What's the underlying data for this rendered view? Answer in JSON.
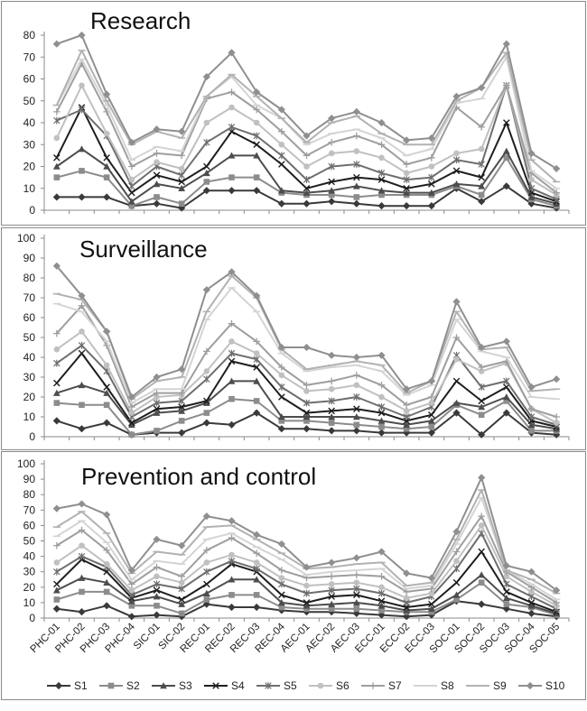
{
  "chart_data": [
    {
      "type": "line",
      "title": "Research",
      "ylim": [
        0,
        80
      ],
      "yticks": [
        0,
        10,
        20,
        30,
        40,
        50,
        60,
        70,
        80
      ],
      "categories": [
        "PHC-01",
        "PHC-02",
        "PHC-03",
        "PHC-04",
        "SIC-01",
        "SIC-02",
        "REC-01",
        "REC-02",
        "REC-03",
        "REC-04",
        "AEC-01",
        "AEC-02",
        "AEC-03",
        "ECC-01",
        "ECC-02",
        "ECC-03",
        "SOC-01",
        "SOC-02",
        "SOC-03",
        "SOC-04",
        "SOC-05"
      ],
      "grid": false,
      "series": [
        {
          "name": "S1",
          "values": [
            6,
            6,
            6,
            2,
            3,
            1,
            9,
            9,
            9,
            3,
            3,
            4,
            3,
            2,
            2,
            2,
            10,
            4,
            11,
            3,
            1
          ]
        },
        {
          "name": "S2",
          "values": [
            15,
            18,
            15,
            2,
            6,
            3,
            13,
            15,
            15,
            8,
            7,
            7,
            6,
            7,
            7,
            7,
            11,
            7,
            24,
            5,
            2
          ]
        },
        {
          "name": "S3",
          "values": [
            20,
            28,
            20,
            4,
            12,
            10,
            17,
            25,
            25,
            9,
            8,
            9,
            11,
            9,
            8,
            8,
            12,
            11,
            27,
            6,
            3
          ]
        },
        {
          "name": "S4",
          "values": [
            24,
            47,
            24,
            8,
            16,
            13,
            20,
            36,
            30,
            21,
            10,
            13,
            15,
            14,
            10,
            12,
            18,
            15,
            40,
            8,
            4
          ]
        },
        {
          "name": "S5",
          "values": [
            41,
            46,
            34,
            11,
            20,
            16,
            31,
            38,
            34,
            25,
            14,
            20,
            21,
            17,
            14,
            15,
            23,
            21,
            57,
            10,
            5
          ]
        },
        {
          "name": "S6",
          "values": [
            33,
            57,
            35,
            14,
            22,
            19,
            40,
            47,
            40,
            30,
            20,
            26,
            27,
            24,
            17,
            20,
            26,
            28,
            57,
            14,
            7
          ]
        },
        {
          "name": "S7",
          "values": [
            45,
            67,
            45,
            20,
            26,
            25,
            51,
            54,
            46,
            36,
            25,
            31,
            34,
            30,
            21,
            24,
            47,
            38,
            57,
            17,
            8
          ]
        },
        {
          "name": "S8",
          "values": [
            48,
            69,
            48,
            23,
            29,
            27,
            52,
            61,
            48,
            42,
            30,
            35,
            37,
            33,
            25,
            28,
            49,
            51,
            70,
            18,
            10
          ]
        },
        {
          "name": "S9",
          "values": [
            48,
            73,
            50,
            30,
            36,
            33,
            52,
            62,
            52,
            42,
            31,
            40,
            43,
            35,
            30,
            30,
            50,
            56,
            72,
            23,
            13
          ]
        },
        {
          "name": "S10",
          "values": [
            76,
            80,
            53,
            31,
            37,
            36,
            61,
            72,
            54,
            46,
            34,
            42,
            45,
            40,
            32,
            33,
            52,
            56,
            76,
            26,
            19
          ]
        }
      ]
    },
    {
      "type": "line",
      "title": "Surveillance",
      "ylim": [
        0,
        100
      ],
      "yticks": [
        0,
        10,
        20,
        30,
        40,
        50,
        60,
        70,
        80,
        90,
        100
      ],
      "categories": [
        "PHC-01",
        "PHC-02",
        "PHC-03",
        "PHC-04",
        "SIC-01",
        "SIC-02",
        "REC-01",
        "REC-02",
        "REC-03",
        "REC-04",
        "AEC-01",
        "AEC-02",
        "AEC-03",
        "ECC-01",
        "ECC-02",
        "ECC-03",
        "SOC-01",
        "SOC-02",
        "SOC-03",
        "SOC-04",
        "SOC-05"
      ],
      "grid": false,
      "series": [
        {
          "name": "S1",
          "values": [
            8,
            4,
            7,
            1,
            2,
            2,
            7,
            6,
            12,
            4,
            4,
            3,
            3,
            2,
            2,
            2,
            12,
            1,
            12,
            2,
            1
          ]
        },
        {
          "name": "S2",
          "values": [
            17,
            16,
            16,
            1,
            3,
            8,
            12,
            19,
            18,
            8,
            8,
            7,
            6,
            5,
            4,
            5,
            16,
            11,
            18,
            3,
            3
          ]
        },
        {
          "name": "S3",
          "values": [
            22,
            26,
            22,
            6,
            12,
            13,
            17,
            28,
            28,
            10,
            10,
            10,
            10,
            8,
            6,
            8,
            17,
            15,
            20,
            6,
            4
          ]
        },
        {
          "name": "S4",
          "values": [
            27,
            42,
            25,
            7,
            14,
            15,
            18,
            38,
            35,
            20,
            12,
            13,
            14,
            12,
            8,
            11,
            28,
            18,
            25,
            8,
            5
          ]
        },
        {
          "name": "S5",
          "values": [
            37,
            46,
            33,
            10,
            17,
            18,
            29,
            42,
            39,
            25,
            17,
            18,
            20,
            15,
            10,
            15,
            41,
            25,
            28,
            10,
            6
          ]
        },
        {
          "name": "S6",
          "values": [
            44,
            53,
            36,
            12,
            20,
            21,
            33,
            48,
            42,
            31,
            23,
            24,
            26,
            20,
            13,
            17,
            39,
            33,
            37,
            14,
            7
          ]
        },
        {
          "name": "S7",
          "values": [
            52,
            66,
            46,
            15,
            22,
            22,
            43,
            57,
            48,
            35,
            26,
            28,
            31,
            26,
            16,
            20,
            50,
            35,
            38,
            14,
            10
          ]
        },
        {
          "name": "S8",
          "values": [
            67,
            63,
            48,
            17,
            24,
            24,
            59,
            75,
            63,
            42,
            33,
            35,
            36,
            33,
            21,
            26,
            59,
            43,
            40,
            20,
            19
          ]
        },
        {
          "name": "S9",
          "values": [
            72,
            69,
            53,
            19,
            28,
            30,
            63,
            81,
            70,
            44,
            34,
            36,
            38,
            36,
            22,
            28,
            63,
            44,
            45,
            23,
            24
          ]
        },
        {
          "name": "S10",
          "values": [
            86,
            71,
            53,
            20,
            30,
            34,
            74,
            83,
            71,
            45,
            45,
            41,
            40,
            41,
            24,
            28,
            68,
            45,
            48,
            25,
            29
          ]
        }
      ]
    },
    {
      "type": "line",
      "title": "Prevention and control",
      "ylim": [
        0,
        100
      ],
      "yticks": [
        0,
        10,
        20,
        30,
        40,
        50,
        60,
        70,
        80,
        90,
        100
      ],
      "categories": [
        "PHC-01",
        "PHC-02",
        "PHC-03",
        "PHC-04",
        "SIC-01",
        "SIC-02",
        "REC-01",
        "REC-02",
        "REC-03",
        "REC-04",
        "AEC-01",
        "AEC-02",
        "AEC-03",
        "ECC-01",
        "ECC-02",
        "ECC-03",
        "SOC-01",
        "SOC-02",
        "SOC-03",
        "SOC-04",
        "SOC-05"
      ],
      "grid": false,
      "series": [
        {
          "name": "S1",
          "values": [
            6,
            4,
            8,
            1,
            2,
            1,
            9,
            7,
            7,
            5,
            4,
            4,
            3,
            2,
            1,
            2,
            11,
            9,
            6,
            3,
            1
          ]
        },
        {
          "name": "S2",
          "values": [
            12,
            17,
            17,
            8,
            8,
            3,
            12,
            15,
            15,
            7,
            6,
            6,
            6,
            5,
            4,
            4,
            12,
            23,
            9,
            7,
            2
          ]
        },
        {
          "name": "S3",
          "values": [
            18,
            26,
            23,
            11,
            14,
            9,
            16,
            25,
            25,
            10,
            8,
            9,
            10,
            8,
            5,
            6,
            15,
            28,
            13,
            8,
            3
          ]
        },
        {
          "name": "S4",
          "values": [
            22,
            38,
            30,
            13,
            18,
            12,
            22,
            35,
            30,
            15,
            10,
            14,
            15,
            11,
            7,
            9,
            23,
            43,
            17,
            10,
            4
          ]
        },
        {
          "name": "S5",
          "values": [
            30,
            40,
            33,
            15,
            22,
            19,
            30,
            37,
            32,
            22,
            16,
            18,
            19,
            16,
            10,
            14,
            32,
            55,
            22,
            14,
            6
          ]
        },
        {
          "name": "S6",
          "values": [
            36,
            47,
            35,
            18,
            27,
            23,
            36,
            41,
            36,
            26,
            21,
            22,
            23,
            20,
            13,
            16,
            37,
            60,
            27,
            17,
            8
          ]
        },
        {
          "name": "S7",
          "values": [
            47,
            57,
            44,
            22,
            33,
            27,
            44,
            52,
            42,
            31,
            26,
            27,
            28,
            27,
            17,
            19,
            43,
            66,
            30,
            20,
            10
          ]
        },
        {
          "name": "S8",
          "values": [
            53,
            63,
            49,
            25,
            37,
            35,
            51,
            55,
            46,
            38,
            28,
            30,
            31,
            32,
            19,
            21,
            48,
            78,
            31,
            22,
            12
          ]
        },
        {
          "name": "S9",
          "values": [
            59,
            69,
            55,
            29,
            43,
            41,
            59,
            60,
            51,
            42,
            32,
            33,
            35,
            36,
            21,
            23,
            51,
            83,
            31,
            25,
            16
          ]
        },
        {
          "name": "S10",
          "values": [
            71,
            74,
            67,
            31,
            51,
            47,
            66,
            63,
            54,
            48,
            33,
            36,
            39,
            43,
            29,
            26,
            56,
            91,
            34,
            30,
            18
          ]
        }
      ]
    }
  ],
  "legend": {
    "position": "bottom",
    "entries": [
      "S1",
      "S2",
      "S3",
      "S4",
      "S5",
      "S6",
      "S7",
      "S8",
      "S9",
      "S10"
    ]
  },
  "series_styles": [
    {
      "name": "S1",
      "color": "#3a3a3a",
      "marker": "diamond"
    },
    {
      "name": "S2",
      "color": "#8c8c8c",
      "marker": "square"
    },
    {
      "name": "S3",
      "color": "#4d4d4d",
      "marker": "triangle"
    },
    {
      "name": "S4",
      "color": "#1e1e1e",
      "marker": "x"
    },
    {
      "name": "S5",
      "color": "#6e6e6e",
      "marker": "asterisk"
    },
    {
      "name": "S6",
      "color": "#c0c0c0",
      "marker": "circle"
    },
    {
      "name": "S7",
      "color": "#9e9e9e",
      "marker": "plus"
    },
    {
      "name": "S8",
      "color": "#d4d4d4",
      "marker": "dash"
    },
    {
      "name": "S9",
      "color": "#b2b2b2",
      "marker": "dash"
    },
    {
      "name": "S10",
      "color": "#8f8f8f",
      "marker": "diamond"
    }
  ]
}
